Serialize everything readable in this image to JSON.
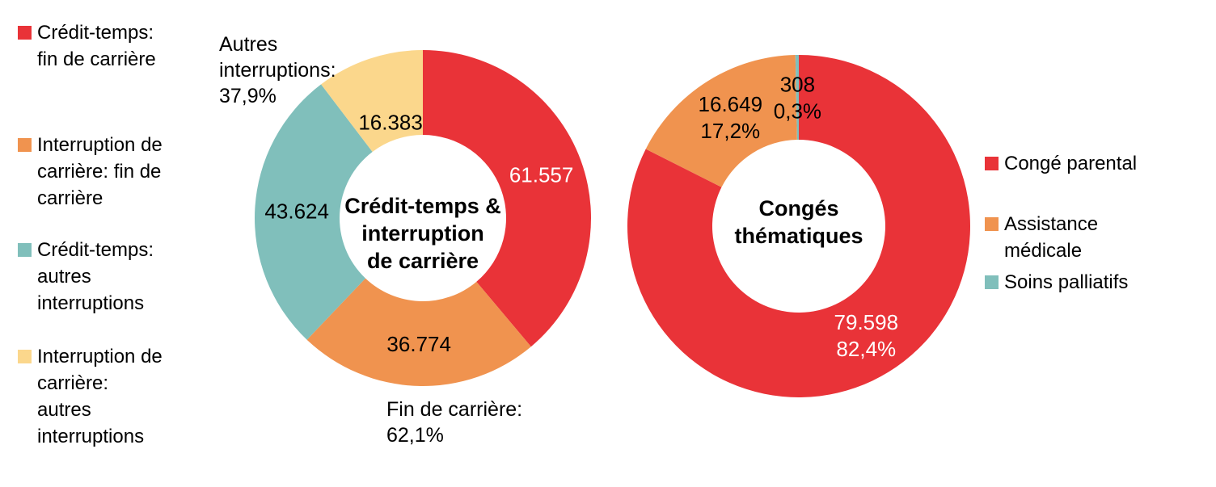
{
  "page": {
    "background": "#FFFFFF",
    "text_color": "#000000"
  },
  "chart_data": [
    {
      "type": "pie",
      "subtype": "donut",
      "title_lines": [
        "Crédit-temps &",
        "interruption",
        "de carrière"
      ],
      "legend_position": "left",
      "start_angle_deg": 0,
      "direction": "clockwise",
      "hole_ratio": 0.5,
      "total": 158338,
      "slices": [
        {
          "key": "credit-temps-fin-de-carriere",
          "label": "Crédit-temps: fin de carrière",
          "legend_lines": [
            "Crédit-temps:",
            "fin de carrière"
          ],
          "value": 61557,
          "display_lines": [
            "61.557"
          ],
          "color": "#E93338",
          "label_color": "#FFFFFF"
        },
        {
          "key": "interruption-de-carriere-fin-de-carriere",
          "label": "Interruption de carrière: fin de carrière",
          "legend_lines": [
            "Interruption de",
            "carrière: fin de",
            "carrière"
          ],
          "value": 36774,
          "display_lines": [
            "36.774"
          ],
          "color": "#F0934F",
          "label_color": "#000000"
        },
        {
          "key": "credit-temps-autres-interruptions",
          "label": "Crédit-temps: autres interruptions",
          "legend_lines": [
            "Crédit-temps:",
            "autres",
            "interruptions"
          ],
          "value": 43624,
          "display_lines": [
            "43.624"
          ],
          "color": "#80BFBB",
          "label_color": "#000000"
        },
        {
          "key": "interruption-de-carriere-autres-interruptions",
          "label": "Interruption de carrière: autres interruptions",
          "legend_lines": [
            "Interruption de",
            "carrière:",
            "autres",
            "interruptions"
          ],
          "value": 16383,
          "display_lines": [
            "16.383"
          ],
          "color": "#FBD78C",
          "label_color": "#000000"
        }
      ],
      "annotations": [
        {
          "key": "autres-interruptions",
          "lines": [
            "Autres",
            "interruptions:",
            "37,9%"
          ]
        },
        {
          "key": "fin-de-carriere",
          "lines": [
            "Fin de carrière:",
            "62,1%"
          ]
        }
      ]
    },
    {
      "type": "pie",
      "subtype": "donut",
      "title_lines": [
        "Congés",
        "thématiques"
      ],
      "legend_position": "right",
      "start_angle_deg": 0,
      "direction": "clockwise",
      "hole_ratio": 0.5,
      "total": 96555,
      "slices": [
        {
          "key": "conge-parental",
          "label": "Congé parental",
          "legend_lines": [
            "Congé parental"
          ],
          "value": 79598,
          "display_lines": [
            "79.598",
            "82,4%"
          ],
          "color": "#E93338",
          "label_color": "#FFFFFF"
        },
        {
          "key": "assistance-medicale",
          "label": "Assistance médicale",
          "legend_lines": [
            "Assistance",
            "médicale"
          ],
          "value": 16649,
          "display_lines": [
            "16.649",
            "17,2%"
          ],
          "color": "#F0934F",
          "label_color": "#000000"
        },
        {
          "key": "soins-palliatifs",
          "label": "Soins palliatifs",
          "legend_lines": [
            "Soins palliatifs"
          ],
          "value": 308,
          "display_lines": [
            "308",
            "0,3%"
          ],
          "color": "#80BFBB",
          "label_color": "#000000"
        }
      ],
      "annotations": []
    }
  ]
}
